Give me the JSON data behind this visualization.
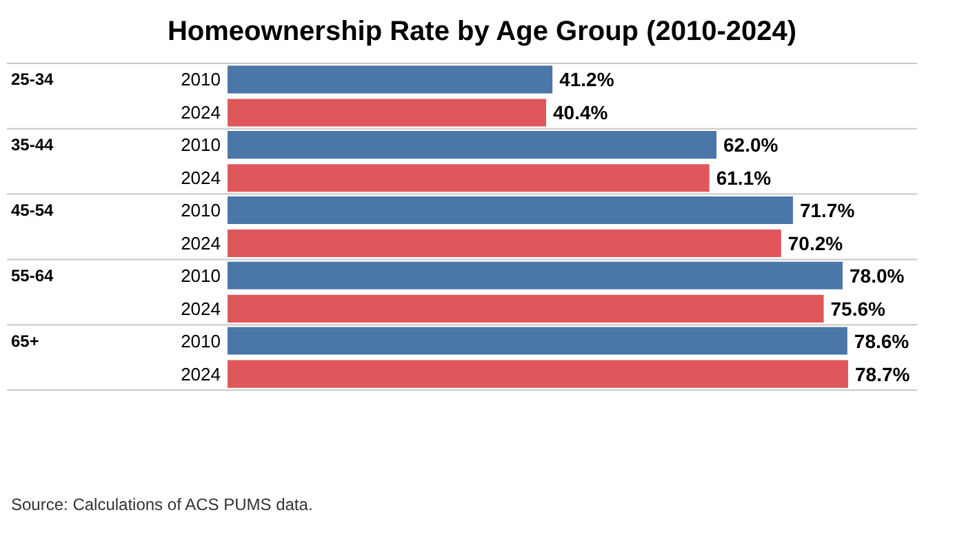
{
  "chart_data": {
    "type": "bar",
    "orientation": "horizontal",
    "title": "Homeownership Rate by Age Group (2010-2024)",
    "categories": [
      "25-34",
      "35-44",
      "45-54",
      "55-64",
      "65+"
    ],
    "series": [
      {
        "name": "2010",
        "color": "#4a76a8",
        "values": [
          41.2,
          62.0,
          71.7,
          78.0,
          78.6
        ],
        "value_labels": [
          "41.2%",
          "62.0%",
          "71.7%",
          "78.0%",
          "78.6%"
        ]
      },
      {
        "name": "2024",
        "color": "#e0575b",
        "values": [
          40.4,
          61.1,
          70.2,
          75.6,
          78.7
        ],
        "value_labels": [
          "40.4%",
          "61.1%",
          "70.2%",
          "75.6%",
          "78.7%"
        ]
      }
    ],
    "legend": false,
    "annotations": [
      "Source: Calculations of ACS PUMS data."
    ]
  }
}
